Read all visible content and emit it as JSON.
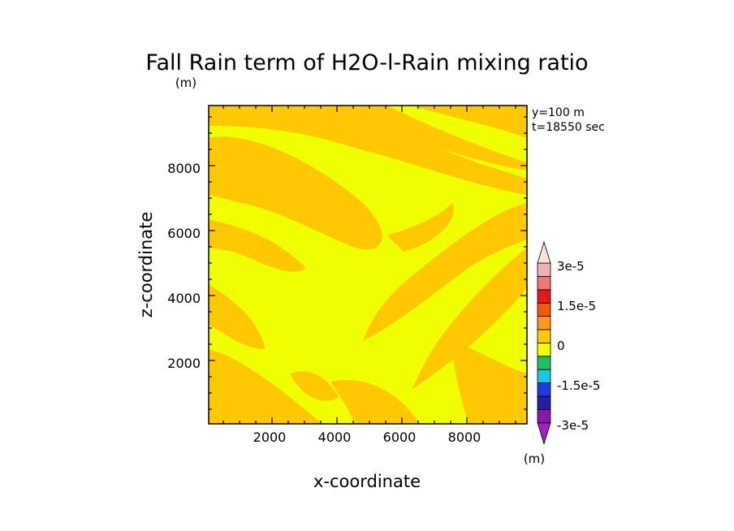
{
  "chart_data": {
    "type": "heatmap",
    "title": "Fall Rain term of H2O-l-Rain mixing ratio",
    "title_unit": "(m)",
    "xlabel": "x-coordinate",
    "ylabel": "z-coordinate",
    "xlim": [
      50,
      9850
    ],
    "ylim": [
      50,
      9850
    ],
    "x_ticks": [
      "2000",
      "4000",
      "6000",
      "8000"
    ],
    "y_ticks": [
      "2000",
      "4000",
      "6000",
      "8000"
    ],
    "annotations": [
      "y=100  m",
      "t=18550 sec"
    ],
    "colorbar": {
      "unit": "(m)",
      "labels": [
        "3e-5",
        "1.5e-5",
        "0",
        "-1.5e-5",
        "-3e-5"
      ],
      "levels": [
        {
          "color": "#8a17b0"
        },
        {
          "color": "#2020a0"
        },
        {
          "color": "#1e3de0"
        },
        {
          "color": "#18c8e8"
        },
        {
          "color": "#20c060"
        },
        {
          "color": "#f0ff00"
        },
        {
          "color": "#ffc800"
        },
        {
          "color": "#ff9620"
        },
        {
          "color": "#f05a10"
        },
        {
          "color": "#e81818"
        },
        {
          "color": "#f07878"
        },
        {
          "color": "#f4b0b0"
        }
      ],
      "top_arrow_color": "#fce0e0",
      "bottom_arrow_color": "#a020c0"
    },
    "field_colors": {
      "low": "#f0ff00",
      "high": "#ffc800"
    },
    "field_description": "Field values range approximately between 0 and 1.5e-5 over the whole domain, with alternating diagonal bands."
  }
}
